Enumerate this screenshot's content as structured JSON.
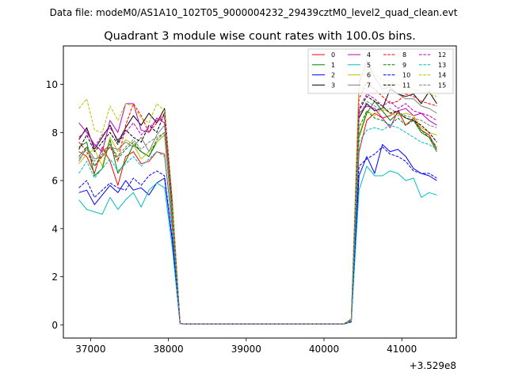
{
  "header_text": "Data file: modeM0/AS1A10_102T05_9000004232_29439cztM0_level2_quad_clean.evt",
  "chart_data": {
    "type": "line",
    "title": "Quadrant 3 module wise count rates with 100.0s bins.",
    "xlabel": "",
    "ylabel": "",
    "x_offset_label": "+3.529e8",
    "xlim": [
      36650,
      41700
    ],
    "ylim": [
      -0.55,
      11.6
    ],
    "xticks": [
      37000,
      38000,
      39000,
      40000,
      41000
    ],
    "xtick_labels": [
      "37000",
      "38000",
      "39000",
      "40000",
      "41000"
    ],
    "yticks": [
      0,
      2,
      4,
      6,
      8,
      10
    ],
    "ytick_labels": [
      "0",
      "2",
      "4",
      "6",
      "8",
      "10"
    ],
    "legend_position": "upper right",
    "legend_columns": 4,
    "grid": false,
    "x": [
      36850,
      36950,
      37050,
      37150,
      37250,
      37350,
      37450,
      37550,
      37650,
      37750,
      37850,
      37950,
      38050,
      38150,
      38250,
      38350,
      38450,
      38550,
      38650,
      38750,
      38850,
      38950,
      39050,
      39150,
      39250,
      39350,
      39450,
      39550,
      39650,
      39750,
      39850,
      39950,
      40050,
      40150,
      40250,
      40350,
      40450,
      40550,
      40650,
      40750,
      40850,
      40950,
      41050,
      41150,
      41250,
      41350,
      41450
    ],
    "series": [
      {
        "name": "0",
        "color": "#ff0000",
        "dash": false,
        "values": [
          7.2,
          7.0,
          6.3,
          7.4,
          6.8,
          5.8,
          7.0,
          7.2,
          6.7,
          6.8,
          7.2,
          7.1,
          4.0,
          0.05,
          0.03,
          0.03,
          0.03,
          0.03,
          0.03,
          0.03,
          0.03,
          0.03,
          0.03,
          0.03,
          0.03,
          0.03,
          0.03,
          0.03,
          0.03,
          0.03,
          0.03,
          0.03,
          0.03,
          0.03,
          0.03,
          0.15,
          7.2,
          8.5,
          8.8,
          8.6,
          8.7,
          8.9,
          8.3,
          8.6,
          8.1,
          7.9,
          7.3
        ]
      },
      {
        "name": "1",
        "color": "#008000",
        "dash": false,
        "values": [
          7.4,
          7.6,
          6.2,
          6.5,
          7.7,
          6.3,
          6.8,
          7.5,
          7.2,
          7.0,
          7.6,
          7.9,
          4.4,
          0.05,
          0.03,
          0.03,
          0.03,
          0.03,
          0.03,
          0.03,
          0.03,
          0.03,
          0.03,
          0.03,
          0.03,
          0.03,
          0.03,
          0.03,
          0.03,
          0.03,
          0.03,
          0.03,
          0.03,
          0.03,
          0.03,
          0.15,
          7.8,
          8.8,
          9.3,
          8.9,
          8.5,
          8.8,
          8.6,
          8.5,
          8.0,
          7.8,
          7.2
        ]
      },
      {
        "name": "2",
        "color": "#0000ff",
        "dash": false,
        "values": [
          5.5,
          5.6,
          5.0,
          5.4,
          5.8,
          5.5,
          6.0,
          5.6,
          5.7,
          5.4,
          5.9,
          6.1,
          3.5,
          0.05,
          0.03,
          0.03,
          0.03,
          0.03,
          0.03,
          0.03,
          0.03,
          0.03,
          0.03,
          0.03,
          0.03,
          0.03,
          0.03,
          0.03,
          0.03,
          0.03,
          0.03,
          0.03,
          0.03,
          0.03,
          0.03,
          0.12,
          6.2,
          7.0,
          6.3,
          7.5,
          7.2,
          7.3,
          7.0,
          6.5,
          6.3,
          6.2,
          6.0
        ]
      },
      {
        "name": "3",
        "color": "#000000",
        "dash": false,
        "values": [
          7.7,
          8.2,
          7.3,
          7.8,
          8.3,
          7.6,
          8.2,
          8.7,
          8.3,
          8.8,
          8.4,
          9.0,
          5.1,
          0.05,
          0.03,
          0.03,
          0.03,
          0.03,
          0.03,
          0.03,
          0.03,
          0.03,
          0.03,
          0.03,
          0.03,
          0.03,
          0.03,
          0.03,
          0.03,
          0.03,
          0.03,
          0.03,
          0.03,
          0.03,
          0.03,
          0.18,
          8.6,
          9.2,
          8.9,
          9.0,
          9.8,
          9.6,
          9.5,
          9.6,
          9.2,
          9.7,
          9.2
        ]
      },
      {
        "name": "4",
        "color": "#bf00bf",
        "dash": false,
        "values": [
          8.4,
          8.0,
          7.5,
          7.2,
          8.5,
          8.0,
          9.2,
          9.2,
          8.1,
          8.0,
          8.6,
          8.4,
          4.8,
          0.05,
          0.03,
          0.03,
          0.03,
          0.03,
          0.03,
          0.03,
          0.03,
          0.03,
          0.03,
          0.03,
          0.03,
          0.03,
          0.03,
          0.03,
          0.03,
          0.03,
          0.03,
          0.03,
          0.03,
          0.03,
          0.03,
          0.15,
          8.8,
          9.1,
          9.0,
          8.6,
          8.2,
          8.9,
          9.0,
          8.7,
          8.8,
          8.5,
          8.3
        ]
      },
      {
        "name": "5",
        "color": "#00bfbf",
        "dash": false,
        "values": [
          5.2,
          4.8,
          4.7,
          4.6,
          5.3,
          4.8,
          5.2,
          5.5,
          4.9,
          5.6,
          5.9,
          5.7,
          3.2,
          0.05,
          0.03,
          0.03,
          0.03,
          0.03,
          0.03,
          0.03,
          0.03,
          0.03,
          0.03,
          0.03,
          0.03,
          0.03,
          0.03,
          0.03,
          0.03,
          0.03,
          0.03,
          0.03,
          0.03,
          0.03,
          0.03,
          0.12,
          5.6,
          6.6,
          6.2,
          6.2,
          6.4,
          6.3,
          6.0,
          6.1,
          5.3,
          5.5,
          5.4
        ]
      },
      {
        "name": "6",
        "color": "#bfbf00",
        "dash": false,
        "values": [
          6.7,
          7.1,
          7.3,
          6.6,
          7.8,
          7.2,
          7.7,
          7.5,
          6.9,
          7.2,
          7.6,
          7.9,
          4.6,
          0.05,
          0.03,
          0.03,
          0.03,
          0.03,
          0.03,
          0.03,
          0.03,
          0.03,
          0.03,
          0.03,
          0.03,
          0.03,
          0.03,
          0.03,
          0.03,
          0.03,
          0.03,
          0.03,
          0.03,
          0.03,
          0.03,
          0.15,
          7.9,
          8.9,
          8.7,
          9.0,
          8.8,
          8.7,
          8.8,
          8.7,
          8.2,
          8.0,
          7.9
        ]
      },
      {
        "name": "7",
        "color": "#808080",
        "dash": false,
        "values": [
          6.8,
          7.4,
          6.9,
          7.0,
          7.4,
          7.3,
          7.6,
          7.4,
          7.8,
          7.2,
          7.9,
          8.3,
          4.9,
          0.05,
          0.03,
          0.03,
          0.03,
          0.03,
          0.03,
          0.03,
          0.03,
          0.03,
          0.03,
          0.03,
          0.03,
          0.03,
          0.03,
          0.03,
          0.03,
          0.03,
          0.03,
          0.03,
          0.03,
          0.03,
          0.03,
          0.25,
          10.0,
          11.0,
          10.3,
          9.8,
          9.9,
          9.6,
          9.4,
          9.4,
          9.1,
          9.0,
          8.8
        ]
      },
      {
        "name": "8",
        "color": "#ff0000",
        "dash": true,
        "values": [
          7.6,
          7.2,
          6.6,
          7.0,
          7.4,
          6.8,
          8.3,
          9.2,
          8.7,
          8.0,
          8.4,
          8.8,
          5.0,
          0.05,
          0.03,
          0.03,
          0.03,
          0.03,
          0.03,
          0.03,
          0.03,
          0.03,
          0.03,
          0.03,
          0.03,
          0.03,
          0.03,
          0.03,
          0.03,
          0.03,
          0.03,
          0.03,
          0.03,
          0.03,
          0.03,
          0.2,
          9.4,
          10.1,
          9.8,
          9.5,
          9.2,
          9.3,
          9.6,
          9.5,
          9.3,
          9.2,
          9.1
        ]
      },
      {
        "name": "9",
        "color": "#008000",
        "dash": true,
        "values": [
          7.0,
          7.4,
          6.6,
          7.1,
          7.5,
          6.9,
          7.3,
          7.6,
          7.2,
          7.0,
          7.7,
          8.0,
          4.6,
          0.05,
          0.03,
          0.03,
          0.03,
          0.03,
          0.03,
          0.03,
          0.03,
          0.03,
          0.03,
          0.03,
          0.03,
          0.03,
          0.03,
          0.03,
          0.03,
          0.03,
          0.03,
          0.03,
          0.03,
          0.03,
          0.03,
          0.15,
          8.2,
          8.9,
          8.6,
          8.5,
          8.3,
          8.6,
          8.3,
          8.5,
          8.1,
          7.8,
          7.4
        ]
      },
      {
        "name": "10",
        "color": "#0000ff",
        "dash": true,
        "values": [
          5.7,
          6.0,
          5.3,
          5.6,
          5.9,
          5.7,
          5.6,
          6.1,
          5.8,
          6.2,
          6.4,
          6.2,
          3.6,
          0.05,
          0.03,
          0.03,
          0.03,
          0.03,
          0.03,
          0.03,
          0.03,
          0.03,
          0.03,
          0.03,
          0.03,
          0.03,
          0.03,
          0.03,
          0.03,
          0.03,
          0.03,
          0.03,
          0.03,
          0.03,
          0.03,
          0.12,
          6.6,
          6.9,
          7.1,
          7.4,
          7.1,
          7.0,
          6.8,
          6.4,
          6.3,
          6.3,
          6.1
        ]
      },
      {
        "name": "11",
        "color": "#000000",
        "dash": true,
        "values": [
          7.3,
          7.9,
          7.2,
          7.6,
          8.0,
          7.5,
          8.1,
          7.8,
          7.6,
          8.3,
          8.0,
          8.8,
          5.0,
          0.05,
          0.03,
          0.03,
          0.03,
          0.03,
          0.03,
          0.03,
          0.03,
          0.03,
          0.03,
          0.03,
          0.03,
          0.03,
          0.03,
          0.03,
          0.03,
          0.03,
          0.03,
          0.03,
          0.03,
          0.03,
          0.03,
          0.18,
          8.9,
          9.5,
          9.3,
          9.1,
          8.8,
          8.9,
          8.6,
          8.5,
          8.3,
          8.0,
          7.6
        ]
      },
      {
        "name": "12",
        "color": "#bf00bf",
        "dash": true,
        "values": [
          7.8,
          8.1,
          7.4,
          7.9,
          8.2,
          7.7,
          8.0,
          8.4,
          7.9,
          8.2,
          8.5,
          8.6,
          4.9,
          0.05,
          0.03,
          0.03,
          0.03,
          0.03,
          0.03,
          0.03,
          0.03,
          0.03,
          0.03,
          0.03,
          0.03,
          0.03,
          0.03,
          0.03,
          0.03,
          0.03,
          0.03,
          0.03,
          0.03,
          0.03,
          0.03,
          0.18,
          9.0,
          9.6,
          9.4,
          9.1,
          9.3,
          9.0,
          9.2,
          8.9,
          8.8,
          8.7,
          8.5
        ]
      },
      {
        "name": "13",
        "color": "#00bfbf",
        "dash": true,
        "values": [
          6.3,
          6.8,
          6.1,
          6.5,
          6.9,
          6.4,
          6.7,
          7.0,
          6.6,
          6.9,
          7.2,
          7.0,
          4.1,
          0.05,
          0.03,
          0.03,
          0.03,
          0.03,
          0.03,
          0.03,
          0.03,
          0.03,
          0.03,
          0.03,
          0.03,
          0.03,
          0.03,
          0.03,
          0.03,
          0.03,
          0.03,
          0.03,
          0.03,
          0.03,
          0.03,
          0.15,
          7.6,
          8.1,
          8.2,
          8.1,
          8.3,
          8.2,
          8.0,
          7.8,
          7.6,
          7.5,
          7.3
        ]
      },
      {
        "name": "14",
        "color": "#bfbf00",
        "dash": true,
        "values": [
          9.0,
          9.4,
          8.1,
          8.0,
          9.1,
          8.5,
          9.2,
          9.1,
          8.6,
          8.4,
          9.2,
          8.9,
          5.3,
          0.05,
          0.03,
          0.03,
          0.03,
          0.03,
          0.03,
          0.03,
          0.03,
          0.03,
          0.03,
          0.03,
          0.03,
          0.03,
          0.03,
          0.03,
          0.03,
          0.03,
          0.03,
          0.03,
          0.03,
          0.03,
          0.03,
          0.22,
          10.2,
          10.6,
          10.4,
          10.2,
          10.1,
          10.0,
          9.9,
          9.8,
          9.7,
          9.6,
          9.5
        ]
      },
      {
        "name": "15",
        "color": "#808080",
        "dash": true,
        "values": [
          6.9,
          7.3,
          6.8,
          7.2,
          7.5,
          7.0,
          7.4,
          7.7,
          7.3,
          7.6,
          7.8,
          8.0,
          4.7,
          0.05,
          0.03,
          0.03,
          0.03,
          0.03,
          0.03,
          0.03,
          0.03,
          0.03,
          0.03,
          0.03,
          0.03,
          0.03,
          0.03,
          0.03,
          0.03,
          0.03,
          0.03,
          0.03,
          0.03,
          0.03,
          0.03,
          0.18,
          8.7,
          9.3,
          9.1,
          8.9,
          9.0,
          8.8,
          8.7,
          8.6,
          8.5,
          8.3,
          8.2
        ]
      }
    ]
  }
}
